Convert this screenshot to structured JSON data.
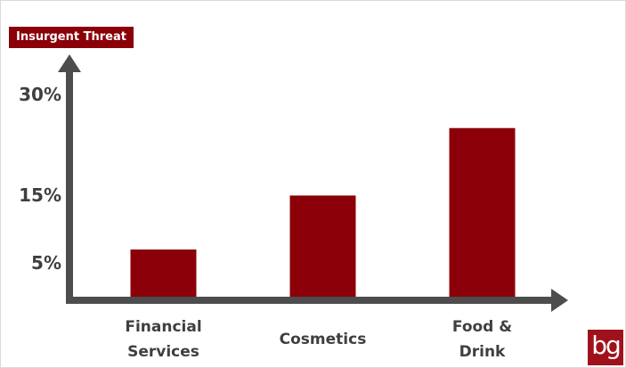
{
  "chart_data": {
    "type": "bar",
    "title": "Insurgent Threat",
    "categories": [
      "Financial Services",
      "Cosmetics",
      "Food & Drink"
    ],
    "values": [
      7,
      15,
      25
    ],
    "color": "#8b0008",
    "ylim": [
      0,
      35
    ],
    "yticks": [
      {
        "value": 5,
        "label": "5%"
      },
      {
        "value": 15,
        "label": "15%"
      },
      {
        "value": 30,
        "label": "30%"
      }
    ],
    "grid": false
  },
  "logo": "bg"
}
